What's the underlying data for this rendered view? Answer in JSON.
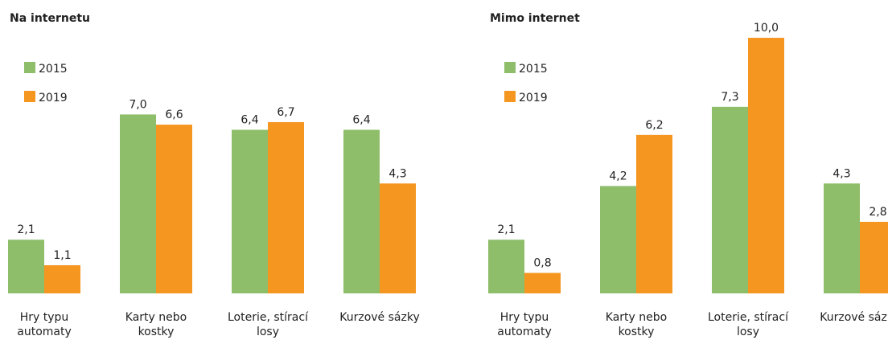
{
  "chart_data": [
    {
      "type": "bar",
      "title": "Na internetu",
      "categories": [
        "Hry typu automaty",
        "Karty nebo kostky",
        "Loterie, stírací losy",
        "Kurzové sázky"
      ],
      "series": [
        {
          "name": "2015",
          "color": "#8fbe6b",
          "values": [
            2.1,
            7.0,
            6.4,
            6.4
          ],
          "value_labels": [
            "2,1",
            "7,0",
            "6,4",
            "6,4"
          ]
        },
        {
          "name": "2019",
          "color": "#f4961f",
          "values": [
            1.1,
            6.6,
            6.7,
            4.3
          ],
          "value_labels": [
            "1,1",
            "6,6",
            "6,7",
            "4,3"
          ]
        }
      ]
    },
    {
      "type": "bar",
      "title": "Mimo internet",
      "categories": [
        "Hry typu automaty",
        "Karty nebo kostky",
        "Loterie, stírací losy",
        "Kurzové sázky"
      ],
      "series": [
        {
          "name": "2015",
          "color": "#8fbe6b",
          "values": [
            2.1,
            4.2,
            7.3,
            4.3
          ],
          "value_labels": [
            "2,1",
            "4,2",
            "7,3",
            "4,3"
          ]
        },
        {
          "name": "2019",
          "color": "#f4961f",
          "values": [
            0.8,
            6.2,
            10.0,
            2.8
          ],
          "value_labels": [
            "0,8",
            "6,2",
            "10,0",
            "2,8"
          ]
        }
      ]
    }
  ]
}
